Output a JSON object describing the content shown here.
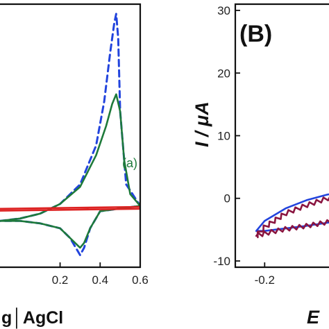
{
  "chart_data": [
    {
      "type": "line",
      "panel": "A",
      "xlim": [
        -0.1,
        0.6
      ],
      "ylim": [
        -12,
        42
      ],
      "x_ticks": [
        "0.2",
        "0.4",
        "0.6"
      ],
      "x_tick_values": [
        0.2,
        0.4,
        0.6
      ],
      "xlabel_fragment": "g│AgCl",
      "grid": false,
      "annotations": [
        {
          "text": "(a)",
          "x": 0.51,
          "y": 8.5,
          "color": "#1e7a3a"
        }
      ],
      "series": [
        {
          "style": "dashed",
          "color": "#2244dd",
          "x": [
            -0.1,
            0.0,
            0.1,
            0.2,
            0.3,
            0.38,
            0.42,
            0.45,
            0.47,
            0.48,
            0.49,
            0.5,
            0.53,
            0.6,
            0.6,
            0.4,
            0.35,
            0.32,
            0.3,
            0.25,
            0.2,
            0.1,
            0.0,
            -0.1
          ],
          "y": [
            -2.5,
            -2.0,
            -1.0,
            1.0,
            5.0,
            13.0,
            22.0,
            32.0,
            38.0,
            40.0,
            35.0,
            20.0,
            5.0,
            0.6,
            0.6,
            -0.5,
            -4.0,
            -8.0,
            -9.5,
            -6.0,
            -4.0,
            -3.0,
            -2.5,
            -2.5
          ]
        },
        {
          "style": "solid",
          "color": "#1e7a3a",
          "x": [
            -0.1,
            0.0,
            0.1,
            0.2,
            0.3,
            0.38,
            0.43,
            0.46,
            0.48,
            0.5,
            0.52,
            0.55,
            0.6,
            0.6,
            0.4,
            0.35,
            0.32,
            0.3,
            0.25,
            0.2,
            0.1,
            0.0,
            -0.1
          ],
          "y": [
            -2.5,
            -2.0,
            -1.0,
            1.0,
            4.5,
            11.0,
            17.0,
            21.5,
            23.5,
            20.0,
            10.0,
            3.0,
            0.6,
            0.6,
            -0.5,
            -4.0,
            -7.0,
            -8.0,
            -6.0,
            -4.0,
            -3.0,
            -2.5,
            -2.5
          ]
        },
        {
          "style": "solid",
          "color": "#dd2222",
          "x": [
            -0.1,
            0.6,
            0.6,
            -0.1
          ],
          "y": [
            -0.4,
            0.0,
            0.4,
            0.0
          ]
        }
      ]
    },
    {
      "type": "line",
      "panel": "B",
      "panel_label": "(B)",
      "xlim": [
        -0.27,
        0.2
      ],
      "ylim": [
        -11,
        31
      ],
      "x_ticks": [
        "-0.2"
      ],
      "x_tick_values": [
        -0.2
      ],
      "y_ticks": [
        "-10",
        "0",
        "10",
        "20",
        "30"
      ],
      "y_tick_values": [
        -10,
        0,
        10,
        20,
        30
      ],
      "ylabel": "I / μA",
      "xlabel": "E",
      "grid": false,
      "series": [
        {
          "style": "solid",
          "color": "#2244dd",
          "x": [
            -0.22,
            -0.2,
            -0.15,
            -0.1,
            -0.05,
            0.0,
            0.05,
            0.1,
            0.15,
            0.2,
            0.2,
            0.15,
            0.1,
            0.05,
            0.0,
            -0.05,
            -0.1,
            -0.15,
            -0.2,
            -0.22
          ],
          "y": [
            -5.2,
            -3.6,
            -1.6,
            -0.3,
            0.6,
            1.1,
            1.5,
            1.9,
            2.2,
            2.5,
            -1.8,
            -2.2,
            -2.6,
            -3.0,
            -3.4,
            -3.9,
            -4.4,
            -4.8,
            -5.2,
            -5.2
          ]
        },
        {
          "style": "wavy",
          "color": "#8a1540",
          "x": [
            -0.22,
            -0.2,
            -0.15,
            -0.1,
            -0.05,
            0.0,
            0.05,
            0.1,
            0.15,
            0.2,
            0.2,
            0.15,
            0.1,
            0.05,
            0.0,
            -0.05,
            -0.1,
            -0.15,
            -0.2,
            -0.22
          ],
          "y": [
            -6.0,
            -4.6,
            -2.4,
            -1.1,
            0.0,
            0.8,
            1.3,
            1.8,
            2.1,
            2.4,
            -1.2,
            -1.7,
            -2.2,
            -2.7,
            -3.2,
            -3.8,
            -4.4,
            -4.9,
            -5.6,
            -6.0
          ]
        }
      ]
    }
  ]
}
